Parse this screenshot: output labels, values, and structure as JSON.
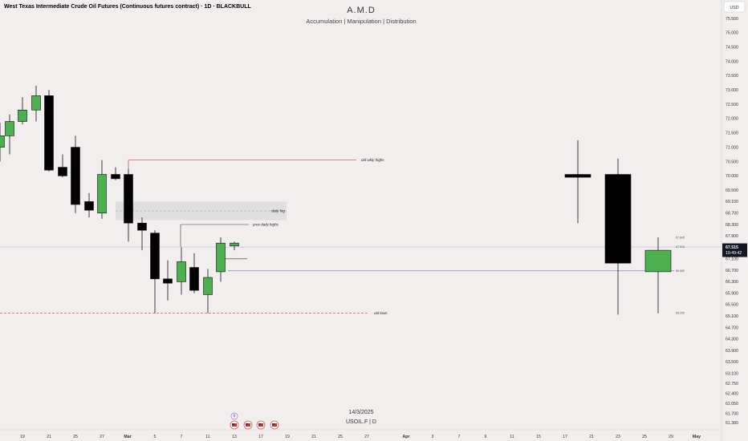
{
  "header": {
    "symbol_title": "West Texas Intermediate Crude Oil Futures (Continuous futures contract) · 1D · BLACKBULL",
    "currency_button": "USD"
  },
  "watermark": {
    "title": "A.M.D",
    "subtitle": "Accumulation | Manipulation | Distribution",
    "date": "14/3/2025",
    "symbol": "USOIL.F | D"
  },
  "colors": {
    "background": "#f2eeee",
    "up_candle": "#4caf50",
    "down_candle": "#000000",
    "old_weekly_highs_line": "#c94a4a",
    "old_lows_line": "#e05555",
    "price_line": "#6b6bb0",
    "price_label_bg": "#131722"
  },
  "chart_data": {
    "type": "candlestick",
    "title": "West Texas Intermediate Crude Oil Futures (Continuous futures contract) · 1D · BLACKBULL",
    "y_axis": {
      "ticks": [
        "75.500",
        "75.000",
        "74.500",
        "74.000",
        "73.500",
        "73.000",
        "72.500",
        "72.000",
        "71.500",
        "71.000",
        "70.500",
        "70.000",
        "69.500",
        "69.100",
        "68.700",
        "68.300",
        "67.900",
        "67.500",
        "67.100",
        "66.700",
        "66.300",
        "65.900",
        "65.500",
        "65.100",
        "64.700",
        "64.300",
        "63.900",
        "63.500",
        "63.100",
        "62.750",
        "62.400",
        "62.050",
        "61.700",
        "61.380"
      ],
      "range": [
        61.25,
        75.95
      ],
      "grid": false
    },
    "x_axis": {
      "ticks": [
        "19",
        "21",
        "25",
        "27",
        "Mar",
        "5",
        "7",
        "11",
        "13",
        "17",
        "19",
        "21",
        "25",
        "27",
        "Apr",
        "3",
        "7",
        "9",
        "11",
        "15",
        "17",
        "21",
        "23",
        "25",
        "29",
        "May"
      ]
    },
    "candles": [
      {
        "x": "18 Feb",
        "o": 71.0,
        "h": 71.85,
        "l": 70.5,
        "c": 71.4
      },
      {
        "x": "19 Feb",
        "o": 71.4,
        "h": 72.15,
        "l": 70.75,
        "c": 71.9
      },
      {
        "x": "20 Feb",
        "o": 71.9,
        "h": 72.75,
        "l": 71.8,
        "c": 72.3
      },
      {
        "x": "21 Feb",
        "o": 72.3,
        "h": 73.15,
        "l": 71.9,
        "c": 72.8
      },
      {
        "x": "24 Feb",
        "o": 72.8,
        "h": 73.0,
        "l": 70.15,
        "c": 70.2
      },
      {
        "x": "25 Feb",
        "o": 70.3,
        "h": 70.75,
        "l": 69.95,
        "c": 70.0
      },
      {
        "x": "26 Feb",
        "o": 71.0,
        "h": 71.4,
        "l": 68.7,
        "c": 69.0
      },
      {
        "x": "27 Feb",
        "o": 69.1,
        "h": 69.4,
        "l": 68.55,
        "c": 68.8
      },
      {
        "x": "28 Feb",
        "o": 68.7,
        "h": 70.55,
        "l": 68.5,
        "c": 70.05
      },
      {
        "x": "3 Mar",
        "o": 70.05,
        "h": 70.3,
        "l": 69.85,
        "c": 69.9
      },
      {
        "x": "4 Mar",
        "o": 70.05,
        "h": 70.25,
        "l": 67.7,
        "c": 68.35
      },
      {
        "x": "5 Mar",
        "o": 68.35,
        "h": 68.55,
        "l": 67.4,
        "c": 68.1
      },
      {
        "x": "6 Mar",
        "o": 68.0,
        "h": 68.1,
        "l": 65.2,
        "c": 66.4
      },
      {
        "x": "7 Mar",
        "o": 66.4,
        "h": 67.05,
        "l": 65.65,
        "c": 66.25
      },
      {
        "x": "10 Mar",
        "o": 66.3,
        "h": 67.5,
        "l": 65.85,
        "c": 67.0
      },
      {
        "x": "11 Mar",
        "o": 66.8,
        "h": 67.3,
        "l": 65.9,
        "c": 66.0
      },
      {
        "x": "12 Mar",
        "o": 65.85,
        "h": 66.75,
        "l": 65.2,
        "c": 66.45
      },
      {
        "x": "13 Mar",
        "o": 66.65,
        "h": 67.85,
        "l": 66.3,
        "c": 67.65
      },
      {
        "x": "14 Mar",
        "o": 67.55,
        "h": 67.7,
        "l": 67.4,
        "c": 67.65
      }
    ],
    "projection_candles": [
      {
        "x": "17 Apr",
        "o": 70.05,
        "h": 71.25,
        "l": 68.35,
        "c": 69.95
      },
      {
        "x": "23 Apr",
        "o": 70.05,
        "h": 70.6,
        "l": 65.15,
        "c": 66.95
      },
      {
        "x": "28 Apr",
        "o": 66.65,
        "h": 67.85,
        "l": 65.2,
        "c": 67.4
      }
    ],
    "levels": [
      {
        "label": "old wkly highs",
        "price": 70.55,
        "style": "solid"
      },
      {
        "label": "prev daily highs",
        "price": 68.3,
        "style": "solid"
      },
      {
        "label": "old lows",
        "price": 65.2,
        "style": "dashed"
      }
    ],
    "zones": [
      {
        "label": "daily fvg",
        "top": 69.1,
        "bottom": 68.45
      }
    ],
    "right_labels": [
      "67.845",
      "67.515",
      "66.680",
      "65.205"
    ],
    "current_price": "67.515",
    "countdown": "19:49:42"
  }
}
